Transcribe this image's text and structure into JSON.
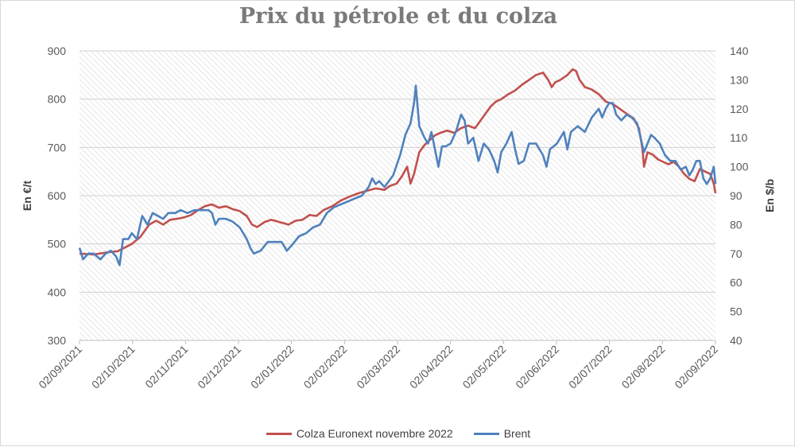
{
  "chart_data": {
    "type": "line",
    "title": "Prix du pétrole et du colza",
    "ylabel_left": "En €/t",
    "ylabel_right": "En $/b",
    "ylim_left": [
      300,
      900
    ],
    "ylim_right": [
      40,
      140
    ],
    "yticks_left": [
      "300",
      "400",
      "500",
      "600",
      "700",
      "800",
      "900"
    ],
    "yticks_right": [
      "40",
      "50",
      "60",
      "70",
      "80",
      "90",
      "100",
      "110",
      "120",
      "130",
      "140"
    ],
    "xticks": [
      "02/09/2021",
      "02/10/2021",
      "02/11/2021",
      "02/12/2021",
      "02/01/2022",
      "02/02/2022",
      "02/03/2022",
      "02/04/2022",
      "02/05/2022",
      "02/06/2022",
      "02/07/2022",
      "02/08/2022",
      "02/09/2022"
    ],
    "x_unit": "days since 02/09/2021",
    "x_range": [
      0,
      365
    ],
    "series": [
      {
        "name": "Colza Euronext novembre 2022",
        "axis": "left",
        "color": "#c0504d",
        "points": [
          [
            0,
            480
          ],
          [
            8,
            478
          ],
          [
            15,
            482
          ],
          [
            22,
            485
          ],
          [
            30,
            500
          ],
          [
            35,
            515
          ],
          [
            40,
            540
          ],
          [
            44,
            548
          ],
          [
            48,
            540
          ],
          [
            52,
            550
          ],
          [
            56,
            552
          ],
          [
            60,
            555
          ],
          [
            64,
            560
          ],
          [
            68,
            570
          ],
          [
            72,
            578
          ],
          [
            76,
            582
          ],
          [
            80,
            575
          ],
          [
            84,
            578
          ],
          [
            88,
            572
          ],
          [
            92,
            568
          ],
          [
            96,
            558
          ],
          [
            99,
            540
          ],
          [
            102,
            535
          ],
          [
            106,
            545
          ],
          [
            110,
            550
          ],
          [
            115,
            545
          ],
          [
            120,
            540
          ],
          [
            124,
            548
          ],
          [
            128,
            550
          ],
          [
            132,
            560
          ],
          [
            136,
            558
          ],
          [
            140,
            570
          ],
          [
            145,
            578
          ],
          [
            150,
            590
          ],
          [
            155,
            598
          ],
          [
            160,
            605
          ],
          [
            165,
            610
          ],
          [
            170,
            615
          ],
          [
            175,
            612
          ],
          [
            178,
            620
          ],
          [
            182,
            625
          ],
          [
            185,
            640
          ],
          [
            188,
            660
          ],
          [
            190,
            625
          ],
          [
            192,
            645
          ],
          [
            195,
            690
          ],
          [
            198,
            705
          ],
          [
            201,
            715
          ],
          [
            204,
            725
          ],
          [
            207,
            730
          ],
          [
            211,
            735
          ],
          [
            215,
            730
          ],
          [
            219,
            740
          ],
          [
            223,
            745
          ],
          [
            227,
            740
          ],
          [
            230,
            755
          ],
          [
            233,
            770
          ],
          [
            236,
            785
          ],
          [
            239,
            795
          ],
          [
            242,
            800
          ],
          [
            246,
            810
          ],
          [
            250,
            818
          ],
          [
            254,
            830
          ],
          [
            258,
            840
          ],
          [
            262,
            850
          ],
          [
            266,
            855
          ],
          [
            269,
            840
          ],
          [
            271,
            825
          ],
          [
            273,
            835
          ],
          [
            276,
            840
          ],
          [
            280,
            850
          ],
          [
            283,
            862
          ],
          [
            285,
            858
          ],
          [
            287,
            840
          ],
          [
            290,
            825
          ],
          [
            294,
            820
          ],
          [
            298,
            810
          ],
          [
            302,
            795
          ],
          [
            306,
            790
          ],
          [
            310,
            780
          ],
          [
            314,
            770
          ],
          [
            318,
            760
          ],
          [
            321,
            740
          ],
          [
            323,
            700
          ],
          [
            324,
            660
          ],
          [
            326,
            690
          ],
          [
            329,
            685
          ],
          [
            332,
            675
          ],
          [
            335,
            670
          ],
          [
            338,
            665
          ],
          [
            341,
            670
          ],
          [
            344,
            660
          ],
          [
            347,
            645
          ],
          [
            350,
            635
          ],
          [
            353,
            630
          ],
          [
            356,
            655
          ],
          [
            359,
            650
          ],
          [
            362,
            645
          ],
          [
            364,
            625
          ],
          [
            365,
            605
          ]
        ]
      },
      {
        "name": "Brent",
        "axis": "right",
        "color": "#4f81bd",
        "points": [
          [
            0,
            72
          ],
          [
            2,
            68
          ],
          [
            5,
            70
          ],
          [
            8,
            70
          ],
          [
            12,
            68
          ],
          [
            15,
            70
          ],
          [
            18,
            71
          ],
          [
            21,
            69
          ],
          [
            23,
            66
          ],
          [
            25,
            75
          ],
          [
            28,
            75
          ],
          [
            30,
            77
          ],
          [
            33,
            75
          ],
          [
            36,
            83
          ],
          [
            39,
            80
          ],
          [
            42,
            84
          ],
          [
            45,
            83
          ],
          [
            48,
            82
          ],
          [
            51,
            84
          ],
          [
            55,
            84
          ],
          [
            58,
            85
          ],
          [
            62,
            84
          ],
          [
            66,
            85
          ],
          [
            70,
            85
          ],
          [
            74,
            85
          ],
          [
            76,
            84
          ],
          [
            78,
            80
          ],
          [
            80,
            82
          ],
          [
            84,
            82
          ],
          [
            88,
            81
          ],
          [
            92,
            79
          ],
          [
            94,
            77
          ],
          [
            96,
            75
          ],
          [
            98,
            72
          ],
          [
            100,
            70
          ],
          [
            104,
            71
          ],
          [
            108,
            74
          ],
          [
            112,
            74
          ],
          [
            116,
            74
          ],
          [
            119,
            71
          ],
          [
            122,
            73
          ],
          [
            126,
            76
          ],
          [
            130,
            77
          ],
          [
            134,
            79
          ],
          [
            138,
            80
          ],
          [
            142,
            84
          ],
          [
            146,
            86
          ],
          [
            150,
            87
          ],
          [
            154,
            88
          ],
          [
            158,
            89
          ],
          [
            162,
            90
          ],
          [
            166,
            93
          ],
          [
            168,
            96
          ],
          [
            170,
            94
          ],
          [
            172,
            95
          ],
          [
            175,
            93
          ],
          [
            180,
            97
          ],
          [
            184,
            104
          ],
          [
            187,
            111
          ],
          [
            190,
            115
          ],
          [
            192,
            122
          ],
          [
            193,
            128
          ],
          [
            195,
            114
          ],
          [
            198,
            110
          ],
          [
            200,
            108
          ],
          [
            202,
            112
          ],
          [
            204,
            106
          ],
          [
            206,
            100
          ],
          [
            208,
            107
          ],
          [
            210,
            107
          ],
          [
            213,
            108
          ],
          [
            216,
            112
          ],
          [
            219,
            118
          ],
          [
            221,
            116
          ],
          [
            223,
            108
          ],
          [
            226,
            110
          ],
          [
            229,
            102
          ],
          [
            232,
            108
          ],
          [
            235,
            106
          ],
          [
            238,
            102
          ],
          [
            240,
            98
          ],
          [
            242,
            105
          ],
          [
            245,
            108
          ],
          [
            248,
            112
          ],
          [
            250,
            106
          ],
          [
            252,
            101
          ],
          [
            255,
            102
          ],
          [
            258,
            108
          ],
          [
            262,
            108
          ],
          [
            266,
            104
          ],
          [
            268,
            100
          ],
          [
            270,
            106
          ],
          [
            274,
            108
          ],
          [
            278,
            112
          ],
          [
            280,
            106
          ],
          [
            282,
            112
          ],
          [
            286,
            114
          ],
          [
            290,
            112
          ],
          [
            294,
            117
          ],
          [
            298,
            120
          ],
          [
            300,
            117
          ],
          [
            302,
            120
          ],
          [
            304,
            122
          ],
          [
            306,
            122
          ],
          [
            308,
            118
          ],
          [
            311,
            116
          ],
          [
            314,
            118
          ],
          [
            317,
            117
          ],
          [
            320,
            115
          ],
          [
            322,
            110
          ],
          [
            324,
            105
          ],
          [
            326,
            108
          ],
          [
            328,
            111
          ],
          [
            330,
            110
          ],
          [
            333,
            108
          ],
          [
            336,
            104
          ],
          [
            339,
            102
          ],
          [
            342,
            102
          ],
          [
            345,
            99
          ],
          [
            348,
            100
          ],
          [
            350,
            97
          ],
          [
            352,
            99
          ],
          [
            354,
            102
          ],
          [
            356,
            102
          ],
          [
            358,
            96
          ],
          [
            360,
            94
          ],
          [
            362,
            96
          ],
          [
            364,
            100
          ],
          [
            365,
            94
          ]
        ]
      }
    ],
    "legend_position": "bottom"
  }
}
